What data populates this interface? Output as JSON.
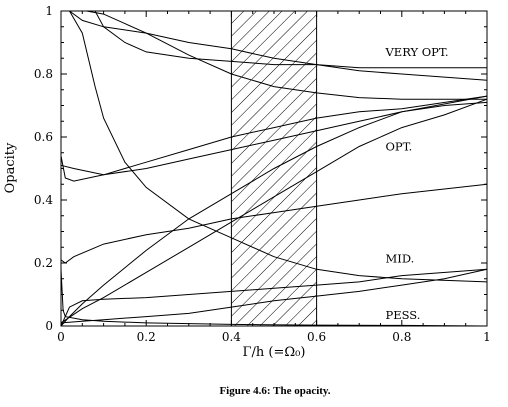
{
  "chart_data": {
    "type": "line",
    "title": "",
    "caption": "Figure 4.6:  The opacity.",
    "xlabel": "Γ/h   (=Ω₀)",
    "ylabel": "Opacity",
    "xlim": [
      0,
      1
    ],
    "ylim": [
      0,
      1
    ],
    "x_ticks": [
      "0",
      "0.2",
      "0.4",
      "0.6",
      "0.8",
      "1"
    ],
    "y_ticks": [
      "0",
      "0.2",
      "0.4",
      "0.6",
      "0.8",
      "1"
    ],
    "shaded_band": {
      "x": [
        0.4,
        0.6
      ],
      "pattern": "diagonal-hatch"
    },
    "annotations": [
      {
        "text": "VERY OPT.",
        "x": 0.75,
        "y": 0.87
      },
      {
        "text": "OPT.",
        "x": 0.75,
        "y": 0.57
      },
      {
        "text": "MID.",
        "x": 0.75,
        "y": 0.215
      },
      {
        "text": "PESS.",
        "x": 0.75,
        "y": 0.035
      }
    ],
    "series": [
      {
        "values": [
          [
            0,
            0.01
          ],
          [
            0.05,
            0.055
          ],
          [
            0.1,
            0.09
          ],
          [
            0.2,
            0.17
          ],
          [
            0.3,
            0.25
          ],
          [
            0.4,
            0.33
          ],
          [
            0.5,
            0.41
          ],
          [
            0.6,
            0.49
          ],
          [
            0.7,
            0.57
          ],
          [
            0.8,
            0.63
          ],
          [
            0.9,
            0.67
          ],
          [
            1,
            0.72
          ]
        ]
      },
      {
        "values": [
          [
            0,
            0
          ],
          [
            0.02,
            0.03
          ],
          [
            0.05,
            0.07
          ],
          [
            0.1,
            0.13
          ],
          [
            0.2,
            0.24
          ],
          [
            0.3,
            0.34
          ],
          [
            0.4,
            0.42
          ],
          [
            0.5,
            0.5
          ],
          [
            0.6,
            0.57
          ],
          [
            0.7,
            0.63
          ],
          [
            0.8,
            0.68
          ],
          [
            1,
            0.73
          ]
        ]
      },
      {
        "values": [
          [
            0,
            0.51
          ],
          [
            0.03,
            0.5
          ],
          [
            0.1,
            0.48
          ],
          [
            0.2,
            0.5
          ],
          [
            0.3,
            0.53
          ],
          [
            0.4,
            0.56
          ],
          [
            0.5,
            0.59
          ],
          [
            0.6,
            0.62
          ],
          [
            0.7,
            0.65
          ],
          [
            0.8,
            0.68
          ],
          [
            0.9,
            0.7
          ],
          [
            1,
            0.71
          ]
        ]
      },
      {
        "values": [
          [
            0,
            0.54
          ],
          [
            0.01,
            0.47
          ],
          [
            0.03,
            0.46
          ],
          [
            0.1,
            0.48
          ],
          [
            0.2,
            0.52
          ],
          [
            0.3,
            0.56
          ],
          [
            0.4,
            0.6
          ],
          [
            0.5,
            0.63
          ],
          [
            0.6,
            0.66
          ],
          [
            0.7,
            0.68
          ],
          [
            0.8,
            0.69
          ],
          [
            1,
            0.73
          ]
        ]
      },
      {
        "values": [
          [
            0,
            0.21
          ],
          [
            0.01,
            0.2
          ],
          [
            0.03,
            0.22
          ],
          [
            0.1,
            0.26
          ],
          [
            0.2,
            0.29
          ],
          [
            0.3,
            0.31
          ],
          [
            0.4,
            0.34
          ],
          [
            0.5,
            0.36
          ],
          [
            0.6,
            0.38
          ],
          [
            0.7,
            0.4
          ],
          [
            0.8,
            0.42
          ],
          [
            1,
            0.45
          ]
        ]
      },
      {
        "values": [
          [
            0,
            0.0
          ],
          [
            0.02,
            0.06
          ],
          [
            0.05,
            0.08
          ],
          [
            0.1,
            0.085
          ],
          [
            0.2,
            0.09
          ],
          [
            0.3,
            0.1
          ],
          [
            0.4,
            0.11
          ],
          [
            0.5,
            0.12
          ],
          [
            0.6,
            0.13
          ],
          [
            0.7,
            0.14
          ],
          [
            0.8,
            0.16
          ],
          [
            1,
            0.18
          ]
        ]
      },
      {
        "values": [
          [
            0,
            0.01
          ],
          [
            0.05,
            0.015
          ],
          [
            0.1,
            0.02
          ],
          [
            0.2,
            0.03
          ],
          [
            0.3,
            0.04
          ],
          [
            0.4,
            0.06
          ],
          [
            0.5,
            0.08
          ],
          [
            0.6,
            0.095
          ],
          [
            0.7,
            0.11
          ],
          [
            0.8,
            0.13
          ],
          [
            0.9,
            0.15
          ],
          [
            1,
            0.18
          ]
        ]
      },
      {
        "values": [
          [
            0,
            0.18
          ],
          [
            0.005,
            0.05
          ],
          [
            0.01,
            0.03
          ],
          [
            0.05,
            0.02
          ],
          [
            0.1,
            0.015
          ],
          [
            0.2,
            0.01
          ],
          [
            0.4,
            0.005
          ],
          [
            0.6,
            0.003
          ],
          [
            0.8,
            0.002
          ],
          [
            1,
            0.0
          ]
        ]
      },
      {
        "values": [
          [
            0.02,
            1.0
          ],
          [
            0.05,
            0.93
          ],
          [
            0.08,
            0.76
          ],
          [
            0.1,
            0.66
          ],
          [
            0.15,
            0.52
          ],
          [
            0.2,
            0.44
          ],
          [
            0.3,
            0.34
          ],
          [
            0.4,
            0.28
          ],
          [
            0.5,
            0.22
          ],
          [
            0.6,
            0.18
          ],
          [
            0.7,
            0.16
          ],
          [
            0.8,
            0.15
          ],
          [
            1,
            0.14
          ]
        ]
      },
      {
        "values": [
          [
            0.06,
            1.0
          ],
          [
            0.1,
            0.99
          ],
          [
            0.15,
            0.96
          ],
          [
            0.2,
            0.93
          ],
          [
            0.3,
            0.86
          ],
          [
            0.4,
            0.8
          ],
          [
            0.5,
            0.76
          ],
          [
            0.6,
            0.74
          ],
          [
            0.7,
            0.725
          ],
          [
            0.8,
            0.72
          ],
          [
            1,
            0.72
          ]
        ]
      },
      {
        "values": [
          [
            0.08,
            1.0
          ],
          [
            0.1,
            0.95
          ],
          [
            0.15,
            0.9
          ],
          [
            0.2,
            0.87
          ],
          [
            0.3,
            0.85
          ],
          [
            0.4,
            0.84
          ],
          [
            0.5,
            0.83
          ],
          [
            0.6,
            0.83
          ],
          [
            0.7,
            0.82
          ],
          [
            0.8,
            0.82
          ],
          [
            1,
            0.82
          ]
        ]
      },
      {
        "values": [
          [
            0.02,
            1.0
          ],
          [
            0.05,
            0.97
          ],
          [
            0.1,
            0.95
          ],
          [
            0.2,
            0.93
          ],
          [
            0.3,
            0.9
          ],
          [
            0.4,
            0.88
          ],
          [
            0.5,
            0.85
          ],
          [
            0.6,
            0.83
          ],
          [
            0.7,
            0.81
          ],
          [
            0.8,
            0.8
          ],
          [
            0.9,
            0.79
          ],
          [
            1,
            0.78
          ]
        ]
      }
    ]
  }
}
